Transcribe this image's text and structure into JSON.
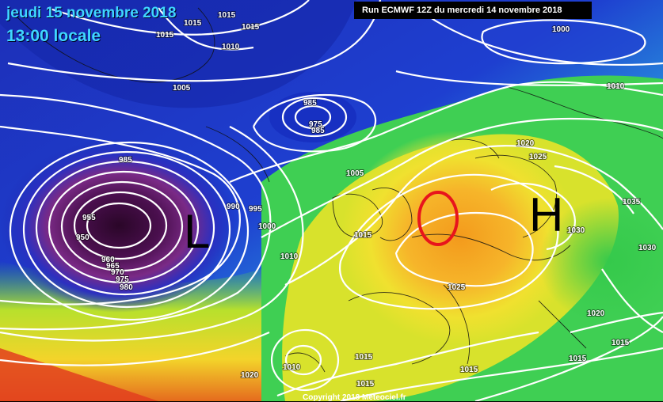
{
  "header": {
    "date_line": "jeudi 15 novembre 2018",
    "time_line": "13:00 locale",
    "run_info": "Run ECMWF 12Z du mercredi 14 novembre 2018"
  },
  "footer": {
    "copyright": "Copyright 2018 Meteociel.fr"
  },
  "annotations": {
    "low_letter": "L",
    "high_letter": "H",
    "circle_color": "#e8141c"
  },
  "colors": {
    "deep_low": "#3a0a3c",
    "purple": "#6a1a6e",
    "blue": "#1a2fc0",
    "cyan": "#23b3e6",
    "green": "#3fcf53",
    "yellow": "#f1e62c",
    "orange": "#f4a21d",
    "red": "#e2401e"
  },
  "isobar_labels": [
    "1015",
    "1015",
    "1015",
    "1015",
    "1010",
    "1000",
    "1010",
    "1005",
    "985",
    "975",
    "985",
    "985",
    "1020",
    "1025",
    "1005",
    "1035",
    "990",
    "995",
    "1000",
    "955",
    "950",
    "960",
    "965",
    "970",
    "975",
    "980",
    "1015",
    "1010",
    "1030",
    "1030",
    "1025",
    "1020",
    "1015",
    "1010",
    "1015",
    "1020",
    "1015",
    "1015",
    "1015"
  ]
}
